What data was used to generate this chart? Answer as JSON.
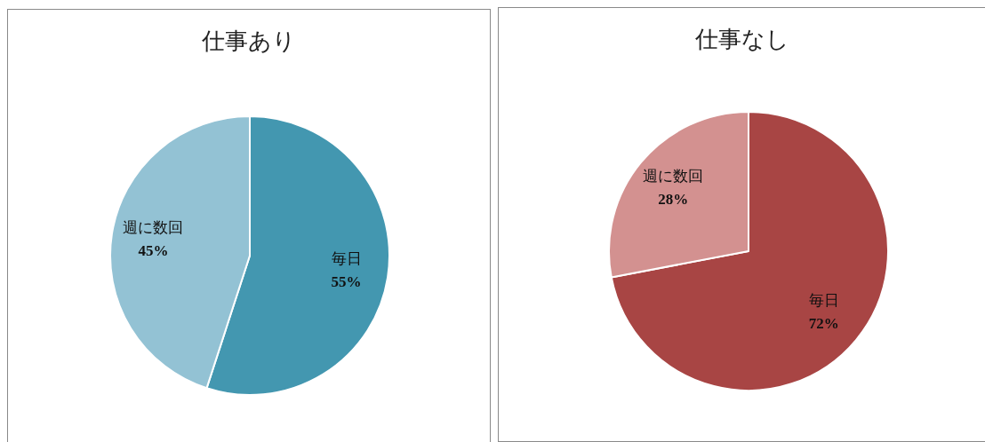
{
  "chart_data": [
    {
      "type": "pie",
      "title": "仕事あり",
      "categories": [
        "毎日",
        "週に数回"
      ],
      "values": [
        55,
        45
      ],
      "colors": [
        "#4397b0",
        "#93c2d4"
      ],
      "value_labels": [
        "55%",
        "45%"
      ]
    },
    {
      "type": "pie",
      "title": "仕事なし",
      "categories": [
        "毎日",
        "週に数回"
      ],
      "values": [
        72,
        28
      ],
      "colors": [
        "#a84544",
        "#d39190"
      ],
      "value_labels": [
        "72%",
        "28%"
      ]
    }
  ]
}
